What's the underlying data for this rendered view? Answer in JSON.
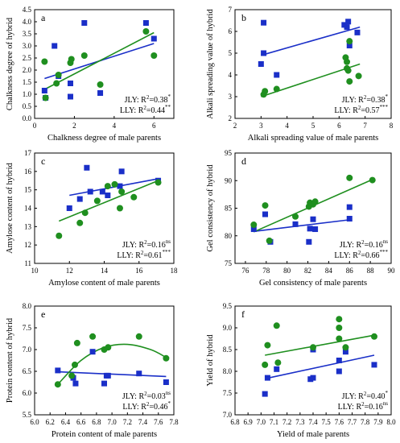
{
  "colors": {
    "jly": "#1a2fc8",
    "lly": "#1f8f1f",
    "axis": "#000000"
  },
  "chart_data": [
    {
      "type": "scatter",
      "panel_label": "a",
      "xlabel": "Chalkness degree of male parents",
      "ylabel": "Chalkness degree of hybrid",
      "xlim": [
        0,
        7
      ],
      "ylim": [
        0,
        4.5
      ],
      "xticks": [
        "0",
        "2",
        "4",
        "6"
      ],
      "xtick_values": [
        0,
        2,
        4,
        6
      ],
      "yticks": [
        "0.0",
        "0.5",
        "1.0",
        "1.5",
        "2.0",
        "2.5",
        "3.0",
        "3.5",
        "4.0",
        "4.5"
      ],
      "ytick_values": [
        0,
        0.5,
        1,
        1.5,
        2,
        2.5,
        3,
        3.5,
        4,
        4.5
      ],
      "series": [
        {
          "name": "JLY",
          "marker": "square",
          "x": [
            0.5,
            0.55,
            1.0,
            1.2,
            1.8,
            1.8,
            2.5,
            3.3,
            5.6,
            6.0
          ],
          "y": [
            1.15,
            0.85,
            3.0,
            1.75,
            1.45,
            0.9,
            3.95,
            1.05,
            3.95,
            3.3
          ],
          "fit": [
            [
              0.5,
              1.65
            ],
            [
              6.0,
              3.1
            ]
          ]
        },
        {
          "name": "LLY",
          "marker": "circle",
          "x": [
            0.5,
            0.55,
            1.1,
            1.2,
            1.8,
            1.85,
            2.5,
            3.3,
            5.6,
            6.0
          ],
          "y": [
            2.35,
            0.85,
            1.45,
            1.8,
            2.3,
            2.45,
            2.6,
            1.4,
            3.6,
            2.6
          ],
          "fit": [
            [
              0.5,
              1.2
            ],
            [
              6.0,
              3.55
            ]
          ]
        }
      ],
      "annotations": [
        {
          "series": "JLY",
          "label": "JLY: R",
          "exp": "2",
          "value": "=0.38",
          "sig": "*"
        },
        {
          "series": "LLY",
          "label": "LLY: R",
          "exp": "2",
          "value": "=0.44",
          "sig": "**"
        }
      ],
      "legend_position": "bottom-right"
    },
    {
      "type": "scatter",
      "panel_label": "b",
      "xlabel": "Alkali spreading value of male parents",
      "ylabel": "Alkali spreading value of hybrid",
      "xlim": [
        2,
        8
      ],
      "ylim": [
        2,
        7
      ],
      "xticks": [
        "2",
        "3",
        "4",
        "5",
        "6",
        "7",
        "8"
      ],
      "xtick_values": [
        2,
        3,
        4,
        5,
        6,
        7,
        8
      ],
      "yticks": [
        "2",
        "3",
        "4",
        "5",
        "6",
        "7"
      ],
      "ytick_values": [
        2,
        3,
        4,
        5,
        6,
        7
      ],
      "series": [
        {
          "name": "JLY",
          "marker": "square",
          "x": [
            3.0,
            3.1,
            3.1,
            3.6,
            6.2,
            6.3,
            6.35,
            6.4,
            6.7
          ],
          "y": [
            4.5,
            6.4,
            5.0,
            4.0,
            6.3,
            6.2,
            6.45,
            5.35,
            5.95
          ],
          "fit": [
            [
              3.0,
              4.9
            ],
            [
              6.8,
              6.2
            ]
          ]
        },
        {
          "name": "LLY",
          "marker": "circle",
          "x": [
            3.1,
            3.15,
            3.6,
            6.25,
            6.3,
            6.3,
            6.35,
            6.4,
            6.4,
            6.75
          ],
          "y": [
            3.1,
            3.25,
            3.35,
            4.8,
            4.6,
            4.3,
            4.2,
            3.7,
            5.55,
            3.95
          ],
          "fit": [
            [
              3.0,
              3.0
            ],
            [
              6.8,
              4.5
            ]
          ]
        }
      ],
      "annotations": [
        {
          "series": "JLY",
          "label": "JLY: R",
          "exp": "2",
          "value": "=0.38",
          "sig": "*"
        },
        {
          "series": "LLY",
          "label": "LLY: R",
          "exp": "2",
          "value": "=0.57",
          "sig": "***"
        }
      ],
      "legend_position": "bottom-right"
    },
    {
      "type": "scatter",
      "panel_label": "c",
      "xlabel": "Amylose content of male parents",
      "ylabel": "Amylose content of hybrid",
      "xlim": [
        10,
        18
      ],
      "ylim": [
        11,
        17
      ],
      "xticks": [
        "10",
        "12",
        "14",
        "16",
        "18"
      ],
      "xtick_values": [
        10,
        12,
        14,
        16,
        18
      ],
      "yticks": [
        "11",
        "12",
        "13",
        "14",
        "15",
        "16",
        "17"
      ],
      "ytick_values": [
        11,
        12,
        13,
        14,
        15,
        16,
        17
      ],
      "series": [
        {
          "name": "JLY",
          "marker": "square",
          "x": [
            12.0,
            12.6,
            13.0,
            13.2,
            13.9,
            14.2,
            14.9,
            15.0,
            17.1
          ],
          "y": [
            14.0,
            14.5,
            16.2,
            14.9,
            14.9,
            14.7,
            15.2,
            16.0,
            15.5
          ],
          "fit": [
            [
              12.0,
              14.7
            ],
            [
              17.1,
              15.6
            ]
          ]
        },
        {
          "name": "LLY",
          "marker": "circle",
          "x": [
            11.4,
            12.6,
            12.9,
            13.6,
            14.2,
            14.6,
            14.9,
            15.0,
            15.7,
            17.1
          ],
          "y": [
            12.5,
            13.2,
            13.75,
            14.4,
            15.2,
            15.3,
            14.0,
            14.9,
            14.6,
            15.4
          ],
          "fit": [
            [
              11.4,
              13.3
            ],
            [
              17.1,
              15.5
            ]
          ]
        }
      ],
      "annotations": [
        {
          "series": "JLY",
          "label": "JLY: R",
          "exp": "2",
          "value": "=0.16",
          "sig": "ns"
        },
        {
          "series": "LLY",
          "label": "LLY: R",
          "exp": "2",
          "value": "=0.61",
          "sig": "***"
        }
      ],
      "legend_position": "bottom-right"
    },
    {
      "type": "scatter",
      "panel_label": "d",
      "xlabel": "Gel consistency of male parents",
      "ylabel": "Gel consistency of hybrid",
      "xlim": [
        75,
        90
      ],
      "ylim": [
        75,
        95
      ],
      "xticks": [
        "76",
        "78",
        "80",
        "82",
        "84",
        "86",
        "88",
        "90"
      ],
      "xtick_values": [
        76,
        78,
        80,
        82,
        84,
        86,
        88,
        90
      ],
      "yticks": [
        "75",
        "80",
        "85",
        "90",
        "95"
      ],
      "ytick_values": [
        75,
        80,
        85,
        90,
        95
      ],
      "series": [
        {
          "name": "JLY",
          "marker": "square",
          "x": [
            76.8,
            77.9,
            78.4,
            80.8,
            82.1,
            82.2,
            82.5,
            82.7,
            86.0,
            86.0
          ],
          "y": [
            81.2,
            83.9,
            78.9,
            82.1,
            78.9,
            81.3,
            83.0,
            81.2,
            83.1,
            85.2
          ],
          "fit": [
            [
              76.8,
              80.8
            ],
            [
              86.0,
              82.9
            ]
          ]
        },
        {
          "name": "LLY",
          "marker": "circle",
          "x": [
            76.8,
            77.9,
            78.3,
            80.8,
            82.1,
            82.2,
            82.5,
            82.7,
            86.0,
            88.2
          ],
          "y": [
            82.0,
            85.5,
            79.1,
            83.5,
            85.3,
            86.0,
            85.7,
            86.2,
            90.5,
            90.1
          ],
          "fit": [
            [
              76.8,
              80.7
            ],
            [
              88.2,
              90.2
            ]
          ]
        }
      ],
      "annotations": [
        {
          "series": "JLY",
          "label": "JLY: R",
          "exp": "2",
          "value": "=0.16",
          "sig": "ns"
        },
        {
          "series": "LLY",
          "label": "LLY: R",
          "exp": "2",
          "value": "=0.66",
          "sig": "***"
        }
      ],
      "legend_position": "bottom-right"
    },
    {
      "type": "scatter",
      "panel_label": "e",
      "xlabel": "Protein content of male parents",
      "ylabel": "Protein content of hybrid",
      "xlim": [
        6.0,
        7.8
      ],
      "ylim": [
        5.5,
        8.0
      ],
      "xticks": [
        "6.0",
        "6.2",
        "6.4",
        "6.6",
        "6.8",
        "7.0",
        "7.2",
        "7.4",
        "7.6",
        "7.8"
      ],
      "xtick_values": [
        6.0,
        6.2,
        6.4,
        6.6,
        6.8,
        7.0,
        7.2,
        7.4,
        7.6,
        7.8
      ],
      "yticks": [
        "5.5",
        "6.0",
        "6.5",
        "7.0",
        "7.5",
        "8.0"
      ],
      "ytick_values": [
        5.5,
        6.0,
        6.5,
        7.0,
        7.5,
        8.0
      ],
      "series": [
        {
          "name": "JLY",
          "marker": "square",
          "x": [
            6.3,
            6.5,
            6.53,
            6.75,
            6.9,
            6.93,
            6.95,
            7.35,
            7.7
          ],
          "y": [
            6.52,
            6.35,
            6.22,
            6.95,
            6.22,
            6.4,
            6.4,
            6.45,
            6.25
          ],
          "fit": [
            [
              6.3,
              6.49
            ],
            [
              7.7,
              6.38
            ]
          ]
        },
        {
          "name": "LLY",
          "marker": "circle",
          "x": [
            6.3,
            6.48,
            6.52,
            6.55,
            6.75,
            6.9,
            6.95,
            7.35,
            7.7
          ],
          "y": [
            6.2,
            6.4,
            6.65,
            7.15,
            7.3,
            7.0,
            7.05,
            7.3,
            6.8
          ],
          "fit": [
            [
              6.3,
              6.2
            ],
            [
              6.6,
              6.75
            ],
            [
              6.9,
              7.05
            ],
            [
              7.2,
              7.12
            ],
            [
              7.5,
              7.0
            ],
            [
              7.7,
              6.82
            ]
          ]
        }
      ],
      "annotations": [
        {
          "series": "JLY",
          "label": "JLY: R",
          "exp": "2",
          "value": "=0.03",
          "sig": "ns"
        },
        {
          "series": "LLY",
          "label": "LLY: R",
          "exp": "2",
          "value": "=0.46",
          "sig": "*"
        }
      ],
      "legend_position": "bottom-right"
    },
    {
      "type": "scatter",
      "panel_label": "f",
      "xlabel": "Yield of male parents",
      "ylabel": "Yield of hybrid",
      "xlim": [
        6.8,
        8.0
      ],
      "ylim": [
        7.0,
        9.5
      ],
      "xticks": [
        "6.8",
        "6.9",
        "7.0",
        "7.1",
        "7.2",
        "7.3",
        "7.4",
        "7.5",
        "7.6",
        "7.7",
        "7.8",
        "7.9",
        "8.0"
      ],
      "xtick_values": [
        6.8,
        6.9,
        7.0,
        7.1,
        7.2,
        7.3,
        7.4,
        7.5,
        7.6,
        7.7,
        7.8,
        7.9,
        8.0
      ],
      "yticks": [
        "7.0",
        "7.5",
        "8.0",
        "8.5",
        "9.0",
        "9.5"
      ],
      "ytick_values": [
        7.0,
        7.5,
        8.0,
        8.5,
        9.0,
        9.5
      ],
      "series": [
        {
          "name": "JLY",
          "marker": "square",
          "x": [
            7.03,
            7.05,
            7.12,
            7.38,
            7.4,
            7.4,
            7.6,
            7.6,
            7.65,
            7.87
          ],
          "y": [
            7.48,
            7.85,
            8.05,
            7.82,
            7.85,
            8.5,
            8.0,
            8.25,
            8.45,
            8.15
          ],
          "fit": [
            [
              7.03,
              7.83
            ],
            [
              7.87,
              8.37
            ]
          ]
        },
        {
          "name": "LLY",
          "marker": "circle",
          "x": [
            7.03,
            7.05,
            7.12,
            7.13,
            7.4,
            7.6,
            7.6,
            7.6,
            7.65,
            7.87
          ],
          "y": [
            8.15,
            8.6,
            9.05,
            8.2,
            8.55,
            9.2,
            9.0,
            8.75,
            8.55,
            8.8
          ],
          "fit": [
            [
              7.03,
              8.37
            ],
            [
              7.87,
              8.83
            ]
          ]
        }
      ],
      "annotations": [
        {
          "series": "JLY",
          "label": "JLY: R",
          "exp": "2",
          "value": "=0.40",
          "sig": "*"
        },
        {
          "series": "LLY",
          "label": "LLY: R",
          "exp": "2",
          "value": "=0.16",
          "sig": "ns"
        }
      ],
      "legend_position": "bottom-right"
    }
  ]
}
